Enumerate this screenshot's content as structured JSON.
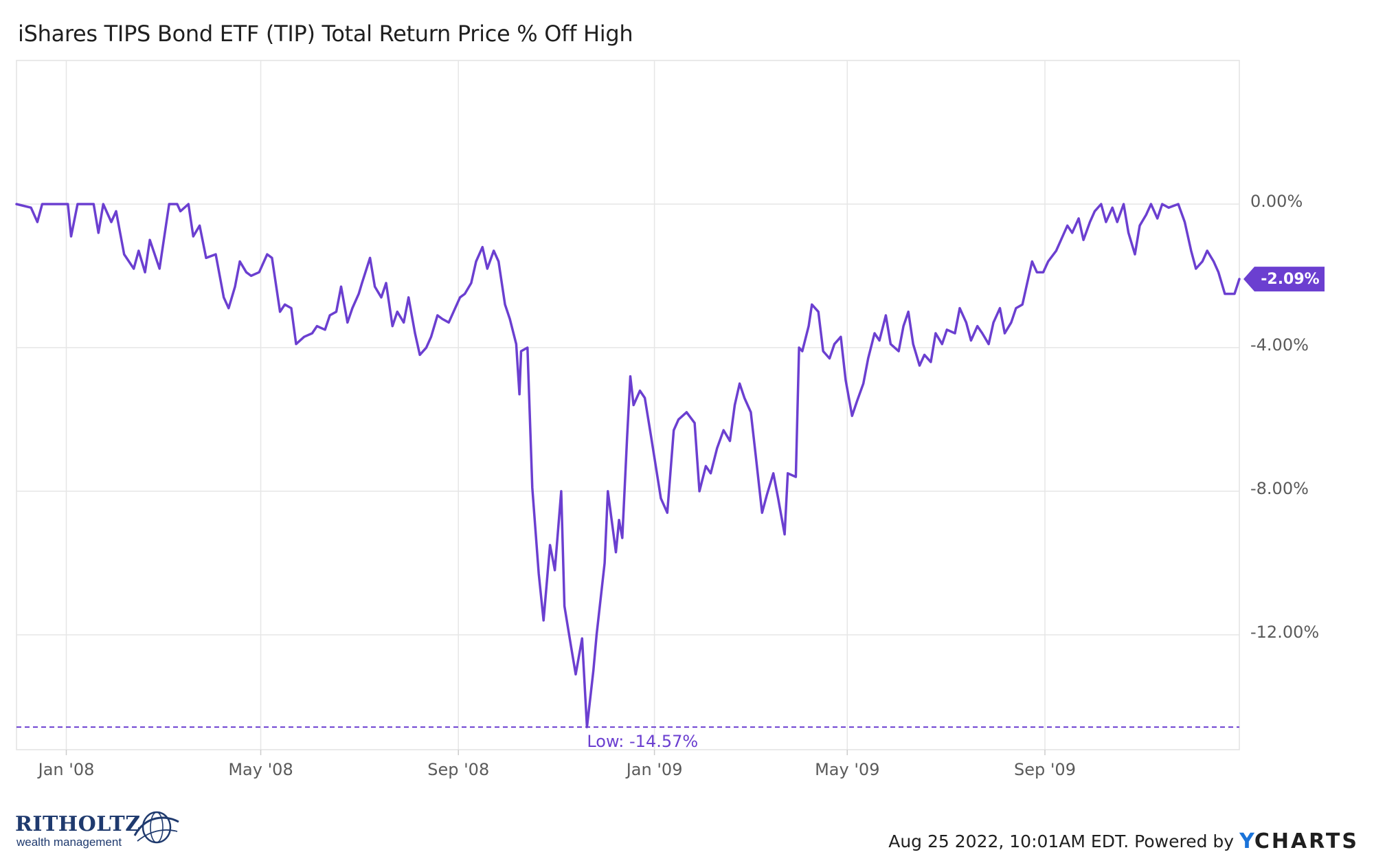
{
  "title": "iShares TIPS Bond ETF (TIP) Total Return Price % Off High",
  "footer": {
    "timestamp": "Aug 25 2022, 10:01AM EDT. Powered by",
    "brand_y": "Y",
    "brand_rest": "CHARTS"
  },
  "logo": {
    "name": "RITHOLTZ",
    "sub": "wealth management",
    "icon": "globe-swoosh-icon"
  },
  "colors": {
    "line": "#6b3fd0",
    "grid": "#e6e6e6",
    "label_bg": "#6b3fd0"
  },
  "chart_data": {
    "type": "line",
    "title": "iShares TIPS Bond ETF (TIP) Total Return Price % Off High",
    "xlim": [
      "2007-12-01",
      "2009-12-31"
    ],
    "ylim": [
      -15.2,
      4.0
    ],
    "y_ticks": [
      0,
      -4,
      -8,
      -12
    ],
    "y_tick_labels": [
      "0.00%",
      "-4.00%",
      "-8.00%",
      "-12.00%"
    ],
    "x_ticks": [
      "2008-01-01",
      "2008-05-01",
      "2008-09-01",
      "2009-01-01",
      "2009-05-01",
      "2009-09-01"
    ],
    "x_tick_labels": [
      "Jan '08",
      "May '08",
      "Sep '08",
      "Jan '09",
      "May '09",
      "Sep '09"
    ],
    "grid": true,
    "low": {
      "value": -14.57,
      "date": "2008-11-20",
      "label": "Low: -14.57%"
    },
    "last": {
      "value": -2.09,
      "date": "2009-12-31",
      "label": "-2.09%"
    },
    "series": [
      {
        "values": [
          [
            "2007-12-01",
            0.0
          ],
          [
            "2007-12-10",
            -0.1
          ],
          [
            "2007-12-14",
            -0.5
          ],
          [
            "2007-12-17",
            0.0
          ],
          [
            "2008-01-02",
            0.0
          ],
          [
            "2008-01-04",
            -0.9
          ],
          [
            "2008-01-08",
            0.0
          ],
          [
            "2008-01-18",
            0.0
          ],
          [
            "2008-01-21",
            -0.8
          ],
          [
            "2008-01-24",
            0.0
          ],
          [
            "2008-01-29",
            -0.5
          ],
          [
            "2008-02-01",
            -0.2
          ],
          [
            "2008-02-06",
            -1.4
          ],
          [
            "2008-02-12",
            -1.8
          ],
          [
            "2008-02-15",
            -1.3
          ],
          [
            "2008-02-19",
            -1.9
          ],
          [
            "2008-02-22",
            -1.0
          ],
          [
            "2008-02-28",
            -1.8
          ],
          [
            "2008-03-05",
            0.0
          ],
          [
            "2008-03-10",
            0.0
          ],
          [
            "2008-03-12",
            -0.2
          ],
          [
            "2008-03-17",
            0.0
          ],
          [
            "2008-03-20",
            -0.9
          ],
          [
            "2008-03-24",
            -0.6
          ],
          [
            "2008-03-28",
            -1.5
          ],
          [
            "2008-04-03",
            -1.4
          ],
          [
            "2008-04-08",
            -2.6
          ],
          [
            "2008-04-11",
            -2.9
          ],
          [
            "2008-04-15",
            -2.3
          ],
          [
            "2008-04-18",
            -1.6
          ],
          [
            "2008-04-22",
            -1.9
          ],
          [
            "2008-04-25",
            -2.0
          ],
          [
            "2008-04-30",
            -1.9
          ],
          [
            "2008-05-05",
            -1.4
          ],
          [
            "2008-05-08",
            -1.5
          ],
          [
            "2008-05-13",
            -3.0
          ],
          [
            "2008-05-16",
            -2.8
          ],
          [
            "2008-05-20",
            -2.9
          ],
          [
            "2008-05-23",
            -3.9
          ],
          [
            "2008-05-28",
            -3.7
          ],
          [
            "2008-06-02",
            -3.6
          ],
          [
            "2008-06-05",
            -3.4
          ],
          [
            "2008-06-10",
            -3.5
          ],
          [
            "2008-06-13",
            -3.1
          ],
          [
            "2008-06-17",
            -3.0
          ],
          [
            "2008-06-20",
            -2.3
          ],
          [
            "2008-06-24",
            -3.3
          ],
          [
            "2008-06-27",
            -2.9
          ],
          [
            "2008-07-01",
            -2.5
          ],
          [
            "2008-07-03",
            -2.2
          ],
          [
            "2008-07-08",
            -1.5
          ],
          [
            "2008-07-11",
            -2.3
          ],
          [
            "2008-07-15",
            -2.6
          ],
          [
            "2008-07-18",
            -2.2
          ],
          [
            "2008-07-22",
            -3.4
          ],
          [
            "2008-07-25",
            -3.0
          ],
          [
            "2008-07-29",
            -3.3
          ],
          [
            "2008-08-01",
            -2.6
          ],
          [
            "2008-08-05",
            -3.6
          ],
          [
            "2008-08-08",
            -4.2
          ],
          [
            "2008-08-12",
            -4.0
          ],
          [
            "2008-08-15",
            -3.7
          ],
          [
            "2008-08-19",
            -3.1
          ],
          [
            "2008-08-22",
            -3.2
          ],
          [
            "2008-08-26",
            -3.3
          ],
          [
            "2008-08-29",
            -3.0
          ],
          [
            "2008-09-02",
            -2.6
          ],
          [
            "2008-09-05",
            -2.5
          ],
          [
            "2008-09-09",
            -2.2
          ],
          [
            "2008-09-12",
            -1.6
          ],
          [
            "2008-09-16",
            -1.2
          ],
          [
            "2008-09-19",
            -1.8
          ],
          [
            "2008-09-23",
            -1.3
          ],
          [
            "2008-09-26",
            -1.6
          ],
          [
            "2008-09-30",
            -2.8
          ],
          [
            "2008-10-03",
            -3.2
          ],
          [
            "2008-10-07",
            -3.9
          ],
          [
            "2008-10-09",
            -5.3
          ],
          [
            "2008-10-10",
            -4.1
          ],
          [
            "2008-10-14",
            -4.0
          ],
          [
            "2008-10-17",
            -7.9
          ],
          [
            "2008-10-21",
            -10.3
          ],
          [
            "2008-10-24",
            -11.6
          ],
          [
            "2008-10-28",
            -9.5
          ],
          [
            "2008-10-31",
            -10.2
          ],
          [
            "2008-11-04",
            -8.0
          ],
          [
            "2008-11-06",
            -11.2
          ],
          [
            "2008-11-10",
            -12.3
          ],
          [
            "2008-11-13",
            -13.1
          ],
          [
            "2008-11-17",
            -12.1
          ],
          [
            "2008-11-20",
            -14.57
          ],
          [
            "2008-11-24",
            -13.0
          ],
          [
            "2008-11-26",
            -12.0
          ],
          [
            "2008-12-01",
            -10.0
          ],
          [
            "2008-12-03",
            -8.0
          ],
          [
            "2008-12-08",
            -9.7
          ],
          [
            "2008-12-10",
            -8.8
          ],
          [
            "2008-12-12",
            -9.3
          ],
          [
            "2008-12-15",
            -6.5
          ],
          [
            "2008-12-17",
            -4.8
          ],
          [
            "2008-12-19",
            -5.6
          ],
          [
            "2008-12-23",
            -5.2
          ],
          [
            "2008-12-26",
            -5.4
          ],
          [
            "2008-12-30",
            -6.5
          ],
          [
            "2009-01-05",
            -8.2
          ],
          [
            "2009-01-09",
            -8.6
          ],
          [
            "2009-01-13",
            -6.3
          ],
          [
            "2009-01-16",
            -6.0
          ],
          [
            "2009-01-21",
            -5.8
          ],
          [
            "2009-01-26",
            -6.1
          ],
          [
            "2009-01-29",
            -8.0
          ],
          [
            "2009-02-02",
            -7.3
          ],
          [
            "2009-02-05",
            -7.5
          ],
          [
            "2009-02-09",
            -6.8
          ],
          [
            "2009-02-13",
            -6.3
          ],
          [
            "2009-02-17",
            -6.6
          ],
          [
            "2009-02-20",
            -5.6
          ],
          [
            "2009-02-23",
            -5.0
          ],
          [
            "2009-02-26",
            -5.4
          ],
          [
            "2009-03-02",
            -5.8
          ],
          [
            "2009-03-05",
            -7.0
          ],
          [
            "2009-03-09",
            -8.6
          ],
          [
            "2009-03-12",
            -8.1
          ],
          [
            "2009-03-16",
            -7.5
          ],
          [
            "2009-03-19",
            -8.2
          ],
          [
            "2009-03-23",
            -9.2
          ],
          [
            "2009-03-25",
            -7.5
          ],
          [
            "2009-03-30",
            -7.6
          ],
          [
            "2009-04-01",
            -4.0
          ],
          [
            "2009-04-03",
            -4.1
          ],
          [
            "2009-04-07",
            -3.4
          ],
          [
            "2009-04-09",
            -2.8
          ],
          [
            "2009-04-13",
            -3.0
          ],
          [
            "2009-04-16",
            -4.1
          ],
          [
            "2009-04-20",
            -4.3
          ],
          [
            "2009-04-23",
            -3.9
          ],
          [
            "2009-04-27",
            -3.7
          ],
          [
            "2009-04-30",
            -4.9
          ],
          [
            "2009-05-04",
            -5.9
          ],
          [
            "2009-05-07",
            -5.5
          ],
          [
            "2009-05-11",
            -5.0
          ],
          [
            "2009-05-14",
            -4.3
          ],
          [
            "2009-05-18",
            -3.6
          ],
          [
            "2009-05-21",
            -3.8
          ],
          [
            "2009-05-25",
            -3.1
          ],
          [
            "2009-05-28",
            -3.9
          ],
          [
            "2009-06-02",
            -4.1
          ],
          [
            "2009-06-05",
            -3.4
          ],
          [
            "2009-06-08",
            -3.0
          ],
          [
            "2009-06-11",
            -3.9
          ],
          [
            "2009-06-15",
            -4.5
          ],
          [
            "2009-06-18",
            -4.2
          ],
          [
            "2009-06-22",
            -4.4
          ],
          [
            "2009-06-25",
            -3.6
          ],
          [
            "2009-06-29",
            -3.9
          ],
          [
            "2009-07-02",
            -3.5
          ],
          [
            "2009-07-07",
            -3.6
          ],
          [
            "2009-07-10",
            -2.9
          ],
          [
            "2009-07-14",
            -3.3
          ],
          [
            "2009-07-17",
            -3.8
          ],
          [
            "2009-07-21",
            -3.4
          ],
          [
            "2009-07-24",
            -3.6
          ],
          [
            "2009-07-28",
            -3.9
          ],
          [
            "2009-07-31",
            -3.3
          ],
          [
            "2009-08-04",
            -2.9
          ],
          [
            "2009-08-07",
            -3.6
          ],
          [
            "2009-08-11",
            -3.3
          ],
          [
            "2009-08-14",
            -2.9
          ],
          [
            "2009-08-18",
            -2.8
          ],
          [
            "2009-08-21",
            -2.2
          ],
          [
            "2009-08-24",
            -1.6
          ],
          [
            "2009-08-27",
            -1.9
          ],
          [
            "2009-08-31",
            -1.9
          ],
          [
            "2009-09-03",
            -1.6
          ],
          [
            "2009-09-08",
            -1.3
          ],
          [
            "2009-09-11",
            -1.0
          ],
          [
            "2009-09-15",
            -0.6
          ],
          [
            "2009-09-18",
            -0.8
          ],
          [
            "2009-09-22",
            -0.4
          ],
          [
            "2009-09-25",
            -1.0
          ],
          [
            "2009-09-29",
            -0.5
          ],
          [
            "2009-10-02",
            -0.2
          ],
          [
            "2009-10-06",
            0.0
          ],
          [
            "2009-10-09",
            -0.5
          ],
          [
            "2009-10-13",
            -0.1
          ],
          [
            "2009-10-16",
            -0.5
          ],
          [
            "2009-10-20",
            0.0
          ],
          [
            "2009-10-23",
            -0.8
          ],
          [
            "2009-10-27",
            -1.4
          ],
          [
            "2009-10-30",
            -0.6
          ],
          [
            "2009-11-03",
            -0.3
          ],
          [
            "2009-11-06",
            0.0
          ],
          [
            "2009-11-10",
            -0.4
          ],
          [
            "2009-11-13",
            0.0
          ],
          [
            "2009-11-17",
            -0.1
          ],
          [
            "2009-11-23",
            0.0
          ],
          [
            "2009-11-27",
            -0.5
          ],
          [
            "2009-12-01",
            -1.3
          ],
          [
            "2009-12-04",
            -1.8
          ],
          [
            "2009-12-08",
            -1.6
          ],
          [
            "2009-12-11",
            -1.3
          ],
          [
            "2009-12-15",
            -1.6
          ],
          [
            "2009-12-18",
            -1.9
          ],
          [
            "2009-12-22",
            -2.5
          ],
          [
            "2009-12-28",
            -2.5
          ],
          [
            "2009-12-31",
            -2.09
          ]
        ]
      }
    ]
  }
}
